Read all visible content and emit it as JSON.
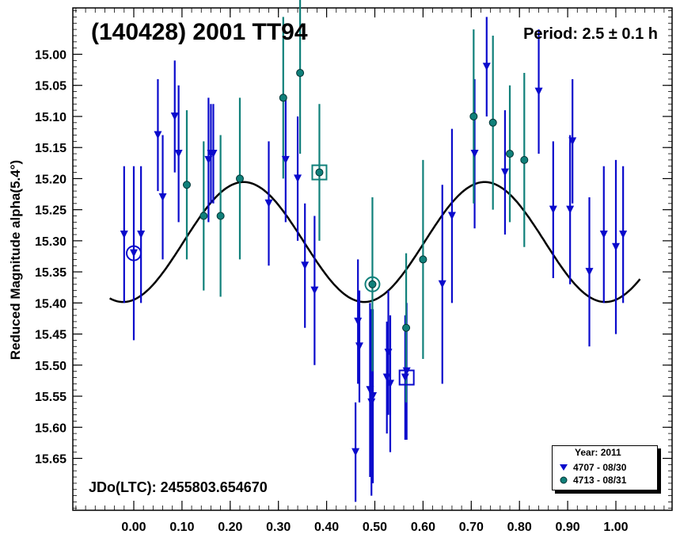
{
  "title": "(140428) 2001 TT94",
  "period_label": "Period: 2.5 ± 0.1 h",
  "jdo_label": "JDo(LTC): 2455803.654670",
  "ylabel": "Reduced Magnitude alpha(5.4°)",
  "legend": {
    "title": "Year: 2011",
    "items": [
      "4707 - 08/30",
      "4713 - 08/31"
    ]
  },
  "colors": {
    "series1": "#0a0acc",
    "series2": "#10807a",
    "curve": "#000000"
  },
  "chart_data": {
    "type": "scatter",
    "title": "(140428) 2001 TT94",
    "xlabel": "",
    "ylabel": "Reduced Magnitude alpha(5.4°)",
    "xlim": [
      -0.06,
      1.07
    ],
    "ylim": [
      15.74,
      14.92
    ],
    "y_inverted": true,
    "x_ticks": [
      "0.00",
      "0.10",
      "0.20",
      "0.30",
      "0.40",
      "0.50",
      "0.60",
      "0.70",
      "0.80",
      "0.90",
      "1.00"
    ],
    "y_ticks": [
      "15.00",
      "15.05",
      "15.10",
      "15.15",
      "15.20",
      "15.25",
      "15.30",
      "15.35",
      "15.40",
      "15.45",
      "15.50",
      "15.55",
      "15.60",
      "15.65"
    ],
    "legend_position": "bottom-right",
    "series": [
      {
        "name": "4707 - 08/30",
        "marker": "triangle-down",
        "points": [
          {
            "x": -0.02,
            "y": 15.29,
            "err": 0.11
          },
          {
            "x": 0.0,
            "y": 15.32,
            "err": 0.14
          },
          {
            "x": 0.015,
            "y": 15.29,
            "err": 0.11
          },
          {
            "x": 0.05,
            "y": 15.13,
            "err": 0.09
          },
          {
            "x": 0.06,
            "y": 15.23,
            "err": 0.1
          },
          {
            "x": 0.085,
            "y": 15.1,
            "err": 0.09
          },
          {
            "x": 0.093,
            "y": 15.16,
            "err": 0.11
          },
          {
            "x": 0.155,
            "y": 15.17,
            "err": 0.1
          },
          {
            "x": 0.16,
            "y": 15.16,
            "err": 0.08
          },
          {
            "x": 0.165,
            "y": 15.16,
            "err": 0.08
          },
          {
            "x": 0.28,
            "y": 15.24,
            "err": 0.1
          },
          {
            "x": 0.315,
            "y": 15.17,
            "err": 0.1
          },
          {
            "x": 0.34,
            "y": 15.2,
            "err": 0.1
          },
          {
            "x": 0.355,
            "y": 15.34,
            "err": 0.1
          },
          {
            "x": 0.375,
            "y": 15.38,
            "err": 0.12
          },
          {
            "x": 0.46,
            "y": 15.64,
            "err": 0.08
          },
          {
            "x": 0.465,
            "y": 15.43,
            "err": 0.1
          },
          {
            "x": 0.468,
            "y": 15.47,
            "err": 0.09
          },
          {
            "x": 0.49,
            "y": 15.54,
            "err": 0.14
          },
          {
            "x": 0.493,
            "y": 15.56,
            "err": 0.15
          },
          {
            "x": 0.496,
            "y": 15.55,
            "err": 0.14
          },
          {
            "x": 0.525,
            "y": 15.52,
            "err": 0.09
          },
          {
            "x": 0.528,
            "y": 15.48,
            "err": 0.1
          },
          {
            "x": 0.532,
            "y": 15.53,
            "err": 0.11
          },
          {
            "x": 0.563,
            "y": 15.52,
            "err": 0.1
          },
          {
            "x": 0.566,
            "y": 15.51,
            "err": 0.11
          },
          {
            "x": 0.64,
            "y": 15.37,
            "err": 0.16
          },
          {
            "x": 0.66,
            "y": 15.26,
            "err": 0.14
          },
          {
            "x": 0.707,
            "y": 15.16,
            "err": 0.12
          },
          {
            "x": 0.732,
            "y": 15.02,
            "err": 0.08
          },
          {
            "x": 0.77,
            "y": 15.19,
            "err": 0.1
          },
          {
            "x": 0.84,
            "y": 15.06,
            "err": 0.1
          },
          {
            "x": 0.87,
            "y": 15.25,
            "err": 0.11
          },
          {
            "x": 0.905,
            "y": 15.25,
            "err": 0.12
          },
          {
            "x": 0.91,
            "y": 15.14,
            "err": 0.1
          },
          {
            "x": 0.945,
            "y": 15.35,
            "err": 0.12
          },
          {
            "x": 0.975,
            "y": 15.29,
            "err": 0.11
          },
          {
            "x": 1.0,
            "y": 15.31,
            "err": 0.14
          },
          {
            "x": 1.015,
            "y": 15.29,
            "err": 0.11
          }
        ]
      },
      {
        "name": "4713 - 08/31",
        "marker": "circle",
        "points": [
          {
            "x": 0.11,
            "y": 15.21,
            "err": 0.12
          },
          {
            "x": 0.145,
            "y": 15.26,
            "err": 0.12
          },
          {
            "x": 0.18,
            "y": 15.26,
            "err": 0.13
          },
          {
            "x": 0.22,
            "y": 15.2,
            "err": 0.13
          },
          {
            "x": 0.31,
            "y": 15.07,
            "err": 0.13
          },
          {
            "x": 0.345,
            "y": 15.03,
            "err": 0.13
          },
          {
            "x": 0.385,
            "y": 15.19,
            "err": 0.11
          },
          {
            "x": 0.495,
            "y": 15.37,
            "err": 0.14
          },
          {
            "x": 0.565,
            "y": 15.44,
            "err": 0.12
          },
          {
            "x": 0.6,
            "y": 15.33,
            "err": 0.16
          },
          {
            "x": 0.705,
            "y": 15.1,
            "err": 0.14
          },
          {
            "x": 0.745,
            "y": 15.11,
            "err": 0.14
          },
          {
            "x": 0.78,
            "y": 15.16,
            "err": 0.11
          },
          {
            "x": 0.81,
            "y": 15.17,
            "err": 0.14
          }
        ]
      }
    ],
    "highlighted": [
      {
        "series": "4707 - 08/30",
        "x": 0.0,
        "y": 15.32,
        "shape": "circle"
      },
      {
        "series": "4707 - 08/30",
        "x": 0.566,
        "y": 15.52,
        "shape": "square"
      },
      {
        "series": "4713 - 08/31",
        "x": 0.385,
        "y": 15.19,
        "shape": "square"
      },
      {
        "series": "4713 - 08/31",
        "x": 0.495,
        "y": 15.37,
        "shape": "circle"
      }
    ],
    "fit_curve": {
      "type": "fourier",
      "mean": 15.302,
      "terms": [
        {
          "harmonic": 2,
          "a": 0.193,
          "peak_phase": 0.228
        }
      ],
      "phase_range": [
        -0.05,
        1.05
      ]
    }
  }
}
